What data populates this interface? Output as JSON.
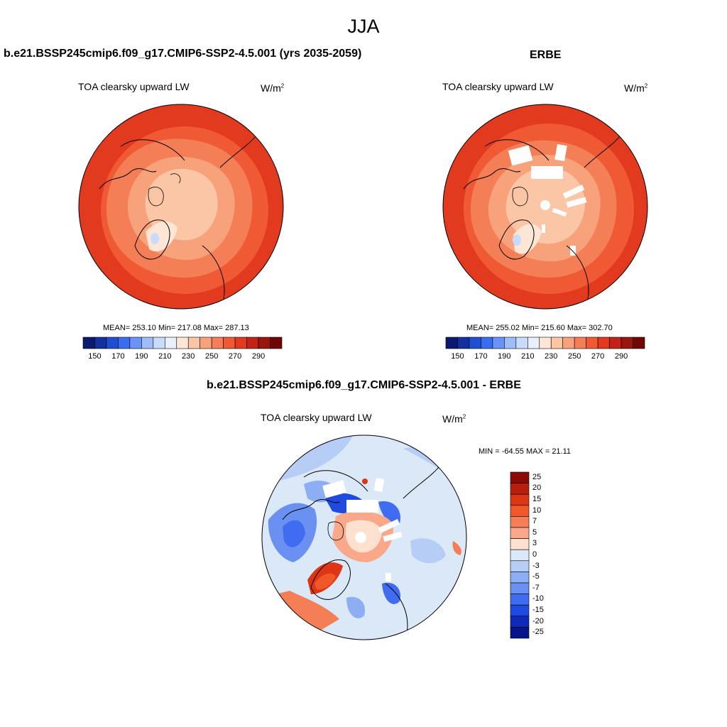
{
  "season": "JJA",
  "model_title": "b.e21.BSSP245cmip6.f09_g17.CMIP6-SSP2-4.5.001 (yrs 2035-2059)",
  "obs_title": "ERBE",
  "diff_title": "b.e21.BSSP245cmip6.f09_g17.CMIP6-SSP2-4.5.001 - ERBE",
  "variable": "TOA clearsky upward LW",
  "units_base": "W/m",
  "units_exp": "2",
  "panels": {
    "model": {
      "stats": "MEAN= 253.10  Min= 217.08  Max= 287.13"
    },
    "obs": {
      "stats": "MEAN= 255.02  Min= 215.60  Max= 302.70"
    },
    "diff": {
      "stats": "MIN = -64.55 MAX =  21.11"
    }
  },
  "colorbar_abs": {
    "colors": [
      "#0a1a6e",
      "#12309e",
      "#1f4fd0",
      "#3a6cf0",
      "#6a93f7",
      "#9fbcf8",
      "#c9dbfa",
      "#e8f1fb",
      "#fde6d6",
      "#fbc6a6",
      "#f8a27c",
      "#f47f57",
      "#ef5a34",
      "#e23a1f",
      "#c22316",
      "#9a150d",
      "#700704"
    ],
    "labels": [
      "150",
      "170",
      "190",
      "210",
      "230",
      "250",
      "270",
      "290"
    ]
  },
  "colorbar_diff": {
    "colors": [
      "#8b0a05",
      "#b8200d",
      "#dc3615",
      "#f0582a",
      "#f47e56",
      "#f9a98a",
      "#fde0cd",
      "#dbe8f8",
      "#b6cdf6",
      "#8eaef3",
      "#6a90f2",
      "#3f6cf0",
      "#1f4ae0",
      "#0d2ab8",
      "#06168a"
    ],
    "labels": [
      "25",
      "20",
      "15",
      "10",
      "7",
      "5",
      "3",
      "0",
      "-3",
      "-5",
      "-7",
      "-10",
      "-15",
      "-20",
      "-25"
    ]
  }
}
